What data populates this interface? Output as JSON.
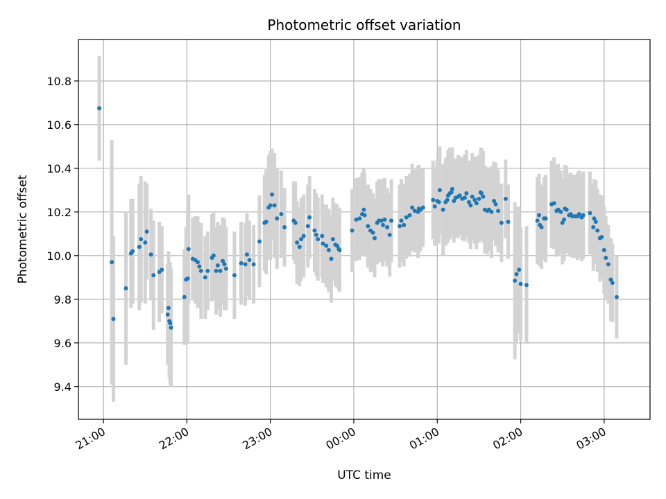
{
  "chart_data": {
    "type": "scatter",
    "title": "Photometric offset variation",
    "xlabel": "UTC time",
    "ylabel": "Photometric offset",
    "x_tick_labels": [
      "21:00",
      "22:00",
      "23:00",
      "00:00",
      "01:00",
      "02:00",
      "03:00"
    ],
    "x_tick_values_hours": [
      0,
      1,
      2,
      3,
      4,
      5,
      6
    ],
    "x_axis_unit": "hours after 21:00 UTC",
    "xlim_hours": [
      -0.3,
      6.55
    ],
    "y_ticks": [
      9.4,
      9.6,
      9.8,
      10.0,
      10.2,
      10.4,
      10.6,
      10.8
    ],
    "ylim": [
      9.25,
      10.99
    ],
    "grid": true,
    "colors": {
      "points": "#1f77b4",
      "errorbars": "#d3d3d3",
      "grid": "#b0b0b0"
    },
    "series": [
      {
        "points": [
          [
            -0.05,
            10.675,
            0.24
          ],
          [
            0.1,
            9.97,
            0.56
          ],
          [
            0.12,
            9.71,
            0.38
          ],
          [
            0.27,
            9.85,
            0.35
          ],
          [
            0.33,
            10.01,
            0.25
          ],
          [
            0.35,
            10.02,
            0.24
          ],
          [
            0.43,
            10.04,
            0.29
          ],
          [
            0.45,
            10.075,
            0.29
          ],
          [
            0.5,
            10.06,
            0.28
          ],
          [
            0.52,
            10.11,
            0.22
          ],
          [
            0.57,
            10.005,
            0.21
          ],
          [
            0.6,
            9.91,
            0.25
          ],
          [
            0.67,
            9.925,
            0.23
          ],
          [
            0.7,
            9.935,
            0.2
          ],
          [
            0.77,
            9.73,
            0.23
          ],
          [
            0.78,
            9.76,
            0.26
          ],
          [
            0.79,
            9.7,
            0.26
          ],
          [
            0.8,
            9.69,
            0.28
          ],
          [
            0.81,
            9.67,
            0.27
          ],
          [
            0.97,
            9.81,
            0.22
          ],
          [
            0.99,
            9.89,
            0.24
          ],
          [
            1.01,
            9.895,
            0.3
          ],
          [
            1.02,
            10.03,
            0.25
          ],
          [
            1.07,
            9.985,
            0.19
          ],
          [
            1.1,
            9.98,
            0.2
          ],
          [
            1.13,
            9.97,
            0.21
          ],
          [
            1.15,
            9.95,
            0.18
          ],
          [
            1.17,
            9.93,
            0.22
          ],
          [
            1.22,
            9.9,
            0.19
          ],
          [
            1.25,
            9.93,
            0.18
          ],
          [
            1.3,
            9.99,
            0.2
          ],
          [
            1.32,
            10.0,
            0.2
          ],
          [
            1.35,
            9.93,
            0.2
          ],
          [
            1.37,
            9.955,
            0.2
          ],
          [
            1.4,
            9.93,
            0.21
          ],
          [
            1.43,
            9.975,
            0.2
          ],
          [
            1.45,
            9.96,
            0.21
          ],
          [
            1.47,
            9.94,
            0.19
          ],
          [
            1.57,
            9.91,
            0.2
          ],
          [
            1.65,
            9.965,
            0.19
          ],
          [
            1.7,
            9.96,
            0.19
          ],
          [
            1.72,
            10.005,
            0.19
          ],
          [
            1.75,
            9.98,
            0.18
          ],
          [
            1.8,
            9.96,
            0.18
          ],
          [
            1.87,
            10.065,
            0.21
          ],
          [
            1.93,
            10.15,
            0.22
          ],
          [
            1.95,
            10.155,
            0.24
          ],
          [
            1.98,
            10.22,
            0.24
          ],
          [
            2.0,
            10.23,
            0.25
          ],
          [
            2.02,
            10.28,
            0.21
          ],
          [
            2.05,
            10.23,
            0.24
          ],
          [
            2.08,
            10.17,
            0.23
          ],
          [
            2.13,
            10.19,
            0.2
          ],
          [
            2.17,
            10.13,
            0.18
          ],
          [
            2.28,
            10.16,
            0.18
          ],
          [
            2.3,
            10.15,
            0.19
          ],
          [
            2.32,
            10.06,
            0.19
          ],
          [
            2.35,
            10.04,
            0.18
          ],
          [
            2.37,
            10.075,
            0.19
          ],
          [
            2.4,
            10.09,
            0.19
          ],
          [
            2.45,
            10.135,
            0.19
          ],
          [
            2.47,
            10.175,
            0.19
          ],
          [
            2.53,
            10.115,
            0.19
          ],
          [
            2.55,
            10.095,
            0.19
          ],
          [
            2.57,
            10.075,
            0.19
          ],
          [
            2.62,
            10.09,
            0.19
          ],
          [
            2.63,
            10.055,
            0.18
          ],
          [
            2.67,
            10.045,
            0.19
          ],
          [
            2.7,
            10.025,
            0.19
          ],
          [
            2.73,
            9.985,
            0.2
          ],
          [
            2.75,
            10.075,
            0.19
          ],
          [
            2.78,
            10.05,
            0.19
          ],
          [
            2.8,
            10.045,
            0.19
          ],
          [
            2.82,
            10.03,
            0.19
          ],
          [
            2.83,
            10.025,
            0.19
          ],
          [
            2.98,
            10.115,
            0.19
          ],
          [
            3.03,
            10.165,
            0.19
          ],
          [
            3.07,
            10.17,
            0.19
          ],
          [
            3.1,
            10.19,
            0.19
          ],
          [
            3.12,
            10.21,
            0.19
          ],
          [
            3.13,
            10.185,
            0.19
          ],
          [
            3.17,
            10.135,
            0.19
          ],
          [
            3.2,
            10.115,
            0.19
          ],
          [
            3.23,
            10.105,
            0.18
          ],
          [
            3.25,
            10.08,
            0.18
          ],
          [
            3.28,
            10.15,
            0.19
          ],
          [
            3.3,
            10.16,
            0.19
          ],
          [
            3.33,
            10.16,
            0.19
          ],
          [
            3.35,
            10.14,
            0.19
          ],
          [
            3.37,
            10.165,
            0.19
          ],
          [
            3.4,
            10.13,
            0.18
          ],
          [
            3.43,
            10.095,
            0.19
          ],
          [
            3.45,
            10.16,
            0.19
          ],
          [
            3.55,
            10.135,
            0.19
          ],
          [
            3.57,
            10.16,
            0.19
          ],
          [
            3.6,
            10.14,
            0.19
          ],
          [
            3.63,
            10.175,
            0.19
          ],
          [
            3.67,
            10.185,
            0.19
          ],
          [
            3.7,
            10.22,
            0.2
          ],
          [
            3.73,
            10.205,
            0.19
          ],
          [
            3.77,
            10.2,
            0.21
          ],
          [
            3.78,
            10.215,
            0.2
          ],
          [
            3.8,
            10.21,
            0.19
          ],
          [
            3.83,
            10.22,
            0.18
          ],
          [
            3.95,
            10.255,
            0.18
          ],
          [
            3.97,
            10.225,
            0.18
          ],
          [
            4.0,
            10.25,
            0.19
          ],
          [
            4.02,
            10.245,
            0.19
          ],
          [
            4.03,
            10.3,
            0.2
          ],
          [
            4.07,
            10.21,
            0.21
          ],
          [
            4.1,
            10.245,
            0.2
          ],
          [
            4.12,
            10.255,
            0.2
          ],
          [
            4.13,
            10.275,
            0.21
          ],
          [
            4.15,
            10.285,
            0.21
          ],
          [
            4.17,
            10.29,
            0.2
          ],
          [
            4.18,
            10.305,
            0.19
          ],
          [
            4.2,
            10.25,
            0.19
          ],
          [
            4.22,
            10.265,
            0.18
          ],
          [
            4.25,
            10.27,
            0.19
          ],
          [
            4.27,
            10.275,
            0.18
          ],
          [
            4.3,
            10.26,
            0.19
          ],
          [
            4.33,
            10.265,
            0.2
          ],
          [
            4.35,
            10.285,
            0.2
          ],
          [
            4.38,
            10.245,
            0.19
          ],
          [
            4.4,
            10.23,
            0.2
          ],
          [
            4.42,
            10.27,
            0.2
          ],
          [
            4.45,
            10.255,
            0.2
          ],
          [
            4.47,
            10.24,
            0.21
          ],
          [
            4.5,
            10.26,
            0.2
          ],
          [
            4.52,
            10.29,
            0.2
          ],
          [
            4.53,
            10.285,
            0.21
          ],
          [
            4.55,
            10.27,
            0.21
          ],
          [
            4.57,
            10.21,
            0.2
          ],
          [
            4.6,
            10.205,
            0.2
          ],
          [
            4.62,
            10.21,
            0.19
          ],
          [
            4.65,
            10.2,
            0.21
          ],
          [
            4.68,
            10.25,
            0.18
          ],
          [
            4.7,
            10.235,
            0.19
          ],
          [
            4.73,
            10.205,
            0.19
          ],
          [
            4.77,
            10.15,
            0.18
          ],
          [
            4.82,
            10.26,
            0.18
          ],
          [
            4.85,
            10.155,
            0.17
          ],
          [
            4.93,
            9.885,
            0.36
          ],
          [
            4.95,
            9.915,
            0.31
          ],
          [
            4.98,
            9.935,
            0.29
          ],
          [
            5.0,
            9.87,
            0.26
          ],
          [
            5.07,
            9.865,
            0.27
          ],
          [
            5.2,
            10.16,
            0.2
          ],
          [
            5.22,
            10.185,
            0.19
          ],
          [
            5.23,
            10.14,
            0.19
          ],
          [
            5.25,
            10.13,
            0.19
          ],
          [
            5.28,
            10.17,
            0.19
          ],
          [
            5.3,
            10.17,
            0.2
          ],
          [
            5.37,
            10.235,
            0.2
          ],
          [
            5.4,
            10.24,
            0.21
          ],
          [
            5.43,
            10.205,
            0.21
          ],
          [
            5.45,
            10.21,
            0.21
          ],
          [
            5.48,
            10.2,
            0.19
          ],
          [
            5.5,
            10.15,
            0.19
          ],
          [
            5.52,
            10.165,
            0.19
          ],
          [
            5.53,
            10.215,
            0.2
          ],
          [
            5.55,
            10.21,
            0.2
          ],
          [
            5.58,
            10.185,
            0.19
          ],
          [
            5.6,
            10.19,
            0.19
          ],
          [
            5.62,
            10.18,
            0.19
          ],
          [
            5.65,
            10.18,
            0.19
          ],
          [
            5.68,
            10.18,
            0.2
          ],
          [
            5.7,
            10.19,
            0.2
          ],
          [
            5.73,
            10.175,
            0.2
          ],
          [
            5.75,
            10.185,
            0.2
          ],
          [
            5.83,
            10.195,
            0.19
          ],
          [
            5.87,
            10.13,
            0.2
          ],
          [
            5.88,
            10.17,
            0.18
          ],
          [
            5.9,
            10.155,
            0.19
          ],
          [
            5.92,
            10.115,
            0.19
          ],
          [
            5.95,
            10.08,
            0.2
          ],
          [
            5.97,
            10.085,
            0.19
          ],
          [
            6.0,
            10.025,
            0.2
          ],
          [
            6.02,
            9.99,
            0.19
          ],
          [
            6.05,
            9.96,
            0.18
          ],
          [
            6.08,
            9.89,
            0.19
          ],
          [
            6.1,
            9.875,
            0.18
          ],
          [
            6.15,
            9.81,
            0.19
          ]
        ]
      }
    ]
  }
}
